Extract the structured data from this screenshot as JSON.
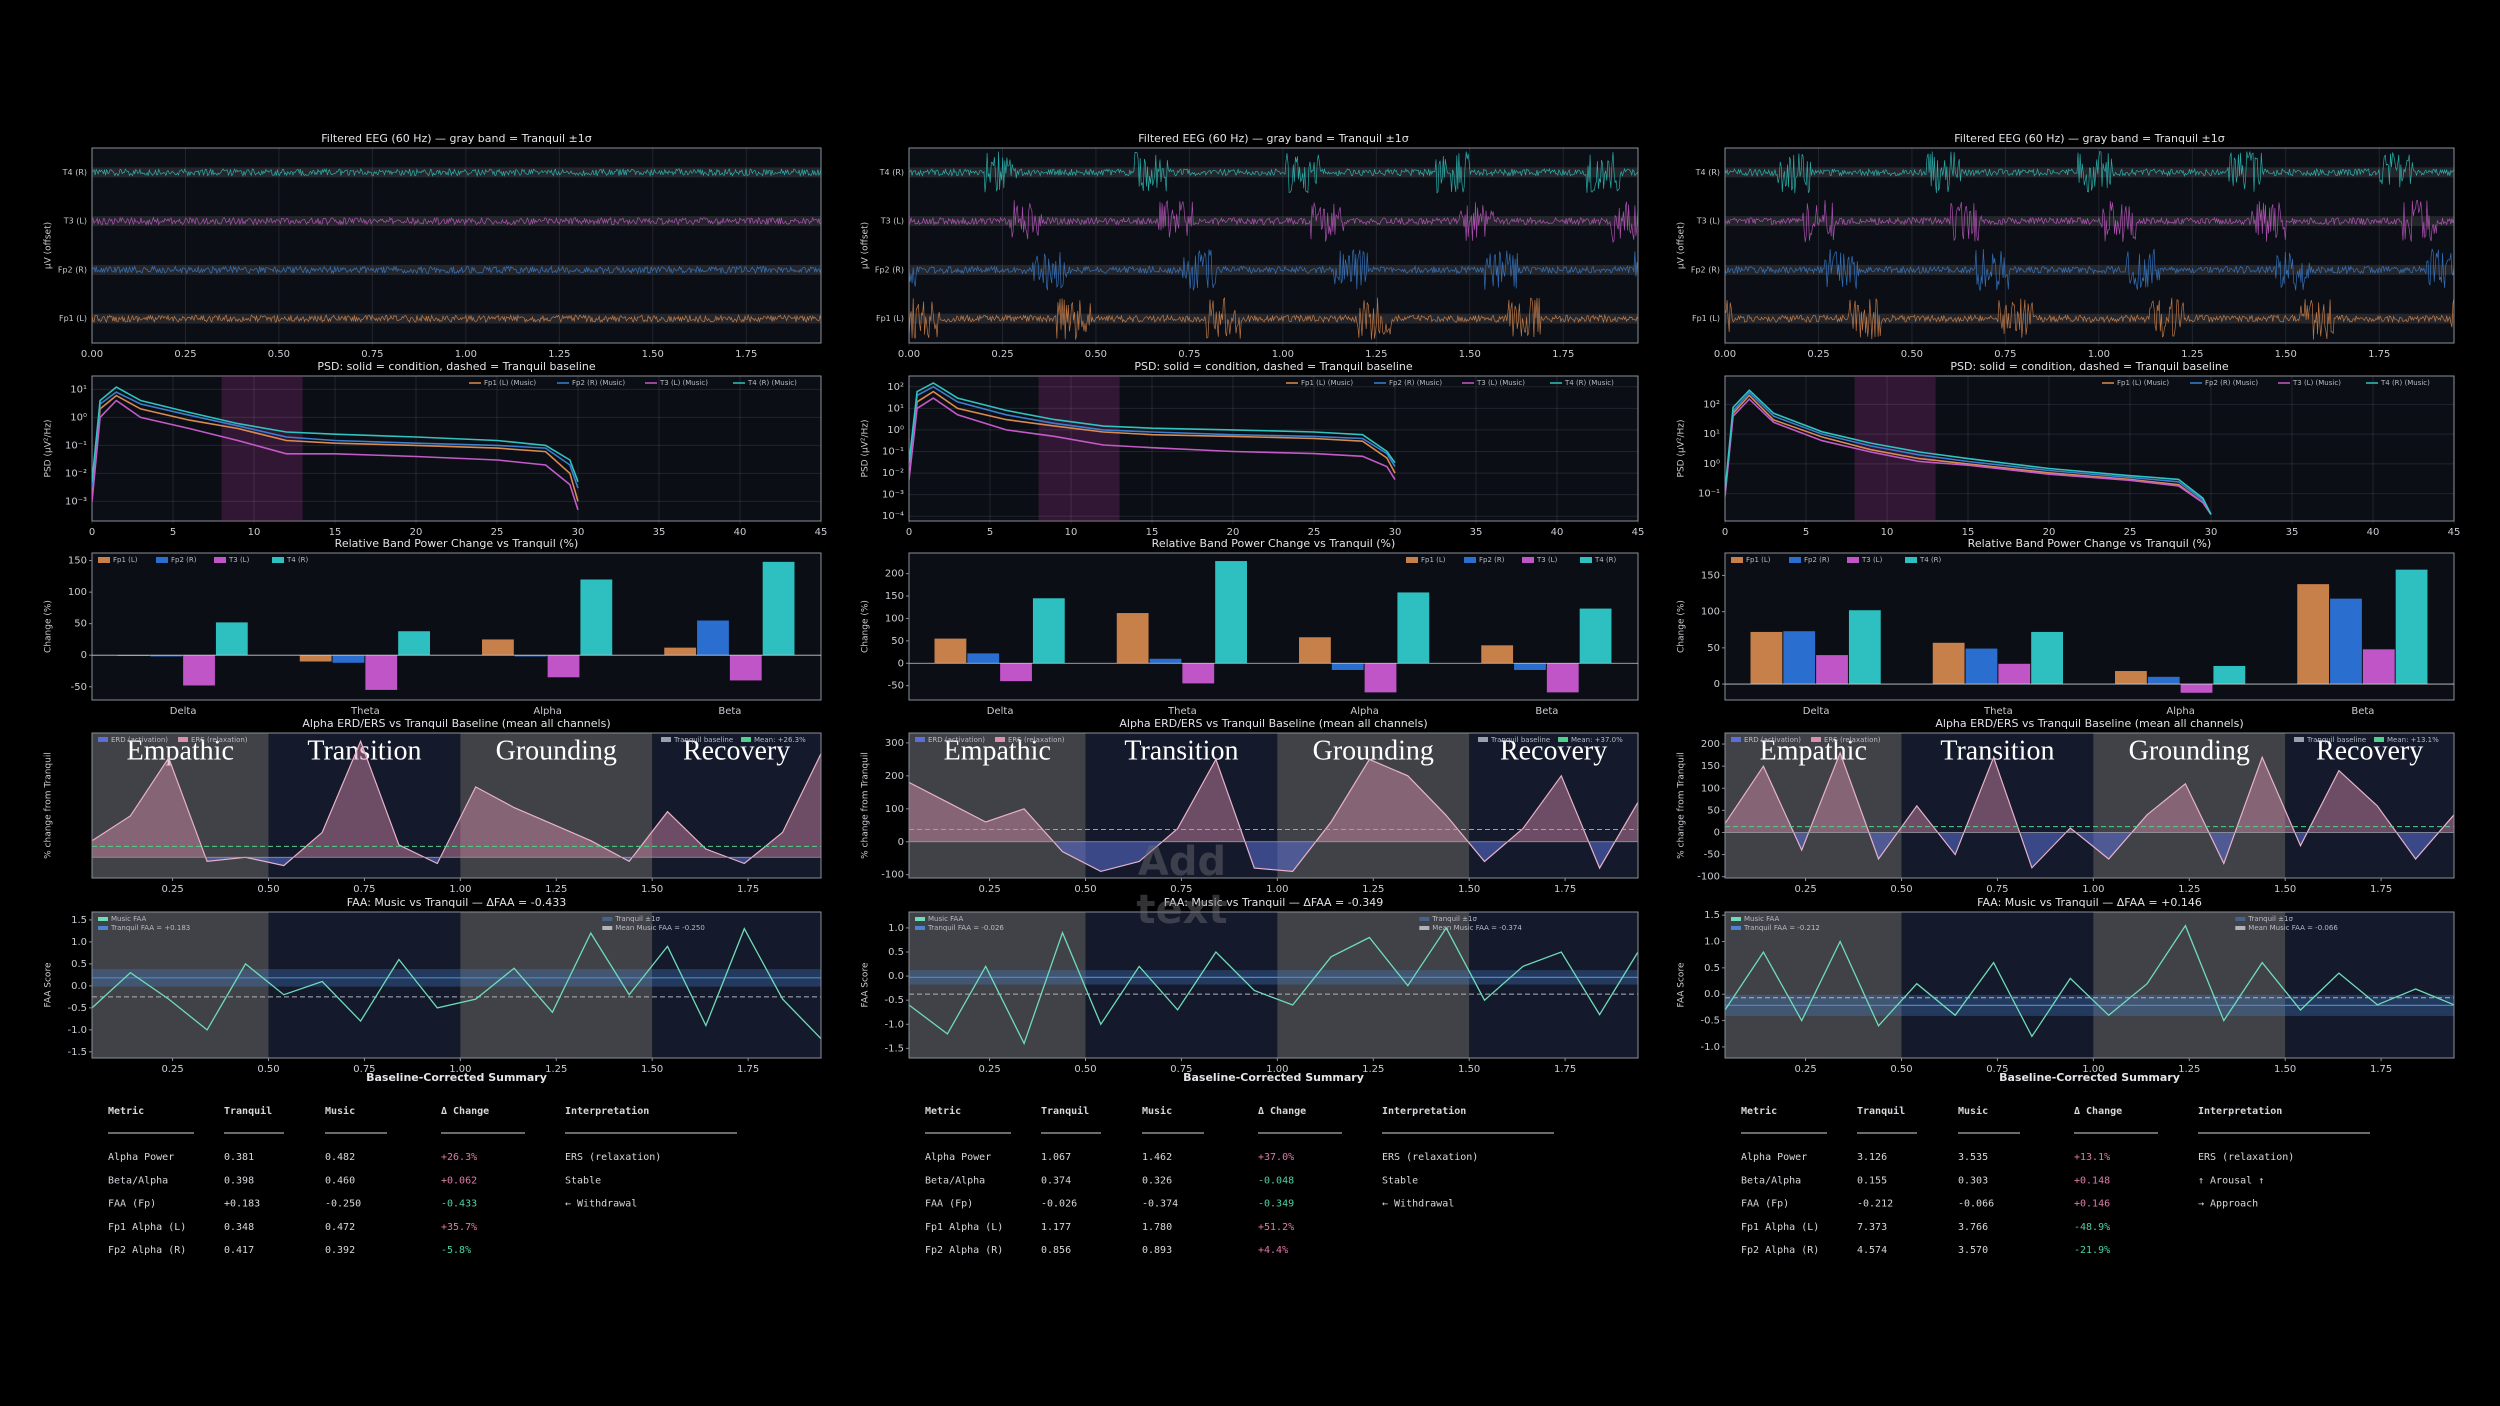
{
  "common": {
    "eeg": {
      "title": "Filtered EEG (60 Hz) — gray band = Tranquil ±1σ",
      "ylabel": "µV (offset)",
      "channels": [
        "Fp1 (L)",
        "Fp2 (R)",
        "T3 (L)",
        "T4 (R)"
      ],
      "colors": [
        "#d98a50",
        "#3b7fd0",
        "#c45ac8",
        "#2fc4c0"
      ],
      "xlim": [
        0,
        1.95
      ],
      "xticks": [
        {
          "value": 0,
          "label": "0.00"
        },
        0.25,
        {
          "value": 0.5,
          "label": "0.50"
        },
        0.75,
        {
          "value": 1,
          "label": "1.00"
        },
        1.25,
        {
          "value": 1.5,
          "label": "1.50"
        },
        1.75
      ]
    },
    "psd": {
      "title": "PSD: solid = condition, dashed = Tranquil baseline",
      "ylabel": "PSD (µV²/Hz)",
      "log_y": true,
      "x": [
        0,
        0.5,
        1.5,
        3,
        6,
        9,
        12,
        15,
        20,
        25,
        28,
        29.5,
        30
      ],
      "xlim": [
        0,
        45
      ],
      "xticks": [
        0,
        5,
        10,
        15,
        20,
        25,
        30,
        35,
        40,
        45
      ],
      "alpha_band": [
        8,
        13
      ]
    },
    "bands": {
      "title": "Relative Band Power Change vs Tranquil (%)",
      "ylabel": "Change (%)",
      "categories": [
        "Delta",
        "Theta",
        "Alpha",
        "Beta"
      ]
    },
    "erd": {
      "title": "Alpha ERD/ERS vs Tranquil Baseline (mean all channels)",
      "ylabel": "% change from Tranquil",
      "legend": [
        "ERD (activation)",
        "ERS (relaxation)",
        "Tranquil baseline"
      ],
      "ers_color": "#d98fae",
      "erd_color": "#5b6fd6",
      "mean_color": "#4fd18b"
    },
    "faa": {
      "ylabel": "FAA Score",
      "legend": [
        "Music FAA",
        "Tranquil ±1σ"
      ],
      "color": "#6fdcb8",
      "tranquil_color": "#4a86d0"
    },
    "time": {
      "x": [
        0.04,
        0.14,
        0.24,
        0.34,
        0.44,
        0.54,
        0.64,
        0.74,
        0.84,
        0.94,
        1.04,
        1.14,
        1.24,
        1.34,
        1.44,
        1.54,
        1.64,
        1.74,
        1.84,
        1.94
      ],
      "xlim": [
        0.04,
        1.94
      ],
      "xticks": [
        0.25,
        {
          "value": 0.5,
          "label": "0.50"
        },
        0.75,
        {
          "value": 1,
          "label": "1.00"
        },
        1.25,
        {
          "value": 1.5,
          "label": "1.50"
        },
        1.75
      ]
    },
    "phases": {
      "names": [
        "Empathic",
        "Transition",
        "Grounding",
        "Recovery"
      ],
      "bounds": [
        0,
        0.5,
        1,
        1.5,
        2
      ]
    },
    "summary": {
      "title": "Baseline-Corrected Summary",
      "header": [
        "Metric",
        "Tranquil",
        "Music",
        "Δ Change",
        "Interpretation"
      ]
    }
  },
  "panels": [
    {
      "psd": {
        "ylim": [
          0.0002,
          30
        ],
        "yticks": [
          {
            "value": 10,
            "label": "10¹"
          },
          {
            "value": 1,
            "label": "10⁰"
          },
          {
            "value": 0.1,
            "label": "10⁻¹"
          },
          {
            "value": 0.01,
            "label": "10⁻²"
          },
          {
            "value": 0.001,
            "label": "10⁻³"
          }
        ],
        "series": [
          {
            "name": "Fp1 (L) (Music)",
            "color": "#d98a50",
            "values": [
              0.002,
              2,
              6,
              2,
              0.8,
              0.4,
              0.15,
              0.12,
              0.1,
              0.08,
              0.06,
              0.01,
              0.001
            ]
          },
          {
            "name": "Fp2 (R) (Music)",
            "color": "#3b7fd0",
            "values": [
              0.003,
              3,
              8,
              3,
              1.2,
              0.5,
              0.2,
              0.15,
              0.12,
              0.1,
              0.08,
              0.02,
              0.003
            ]
          },
          {
            "name": "T3 (L) (Music)",
            "color": "#c45ac8",
            "values": [
              0.001,
              1,
              4,
              1,
              0.4,
              0.15,
              0.05,
              0.05,
              0.04,
              0.03,
              0.02,
              0.004,
              0.0005
            ]
          },
          {
            "name": "T4 (R) (Music)",
            "color": "#2fc4c0",
            "values": [
              0.005,
              4,
              12,
              4,
              1.5,
              0.6,
              0.3,
              0.25,
              0.2,
              0.15,
              0.1,
              0.03,
              0.005
            ]
          }
        ]
      },
      "bands": {
        "ylim": [
          -71,
          162
        ],
        "yticks": [
          -50,
          0,
          50,
          100,
          150
        ],
        "legend": "upper left",
        "series": [
          {
            "name": "Fp1 (L)",
            "color": "#c8804a",
            "values": [
              -1,
              -10,
              25,
              12
            ]
          },
          {
            "name": "Fp2 (R)",
            "color": "#2a6ed0",
            "values": [
              -2,
              -12,
              -2,
              55
            ]
          },
          {
            "name": "T3 (L)",
            "color": "#c055c8",
            "values": [
              -48,
              -55,
              -35,
              -40
            ]
          },
          {
            "name": "T4 (R)",
            "color": "#2ec0c0",
            "values": [
              52,
              38,
              120,
              148
            ]
          }
        ]
      },
      "erd": {
        "ylim": [
          -50,
          300
        ],
        "yticks": [],
        "mean": 26.3,
        "mean_label": "Mean: +26.3%",
        "values": [
          40,
          100,
          240,
          -10,
          0,
          -20,
          60,
          280,
          30,
          -15,
          170,
          120,
          80,
          40,
          -10,
          110,
          20,
          -15,
          60,
          250
        ]
      },
      "faa": {
        "title": "FAA: Music vs Tranquil — ΔFAA = -0.433",
        "ylim": [
          -1.64,
          1.68
        ],
        "yticks": [
          1.5,
          {
            "value": 1,
            "label": "1.0"
          },
          0.5,
          {
            "value": 0,
            "label": "0.0"
          },
          -0.5,
          {
            "value": -1,
            "label": "-1.0"
          },
          -1.5
        ],
        "tranquil": 0.183,
        "tranquil_sd": 0.2,
        "mean": -0.25,
        "legend": [
          "Tranquil FAA = +0.183",
          "Mean Music FAA = -0.250"
        ],
        "values": [
          -0.5,
          0.3,
          -0.3,
          -1.0,
          0.5,
          -0.2,
          0.1,
          -0.8,
          0.6,
          -0.5,
          -0.3,
          0.4,
          -0.6,
          1.2,
          -0.2,
          0.9,
          -0.9,
          1.3,
          -0.3,
          -1.2
        ]
      },
      "summary": {
        "rows": [
          [
            "Alpha Power",
            "0.381",
            "0.482",
            "+26.3%",
            "ERS (relaxation)"
          ],
          [
            "Beta/Alpha",
            "0.398",
            "0.460",
            "+0.062",
            "Stable"
          ],
          [
            "FAA (Fp)",
            "+0.183",
            "-0.250",
            "-0.433",
            "← Withdrawal"
          ],
          [
            "Fp1 Alpha (L)",
            "0.348",
            "0.472",
            "+35.7%"
          ],
          [
            "Fp2 Alpha (R)",
            "0.417",
            "0.392",
            "-5.8%"
          ]
        ]
      }
    },
    {
      "psd": {
        "ylim": [
          6e-05,
          316
        ],
        "yticks": [
          {
            "value": 100,
            "label": "10²"
          },
          {
            "value": 10,
            "label": "10¹"
          },
          {
            "value": 1,
            "label": "10⁰"
          },
          {
            "value": 0.1,
            "label": "10⁻¹"
          },
          {
            "value": 0.01,
            "label": "10⁻²"
          },
          {
            "value": 0.001,
            "label": "10⁻³"
          },
          {
            "value": 0.0001,
            "label": "10⁻⁴"
          }
        ],
        "series": [
          {
            "name": "Fp1 (L) (Music)",
            "color": "#d98a50",
            "values": [
              0.01,
              20,
              60,
              10,
              3,
              1.5,
              0.8,
              0.6,
              0.5,
              0.4,
              0.3,
              0.05,
              0.01
            ]
          },
          {
            "name": "Fp2 (R) (Music)",
            "color": "#3b7fd0",
            "values": [
              0.02,
              40,
              100,
              20,
              5,
              2,
              1,
              0.8,
              0.6,
              0.5,
              0.4,
              0.08,
              0.02
            ]
          },
          {
            "name": "T3 (L) (Music)",
            "color": "#c45ac8",
            "values": [
              0.005,
              10,
              30,
              5,
              1,
              0.5,
              0.2,
              0.15,
              0.1,
              0.08,
              0.06,
              0.02,
              0.005
            ]
          },
          {
            "name": "T4 (R) (Music)",
            "color": "#2fc4c0",
            "values": [
              0.03,
              60,
              150,
              30,
              8,
              3,
              1.5,
              1.2,
              1,
              0.8,
              0.6,
              0.1,
              0.03
            ]
          }
        ]
      },
      "bands": {
        "ylim": [
          -82,
          246
        ],
        "yticks": [
          -50,
          0,
          50,
          100,
          150,
          200
        ],
        "legend": "upper right",
        "series": [
          {
            "name": "Fp1 (L)",
            "color": "#c8804a",
            "values": [
              55,
              112,
              58,
              40
            ]
          },
          {
            "name": "Fp2 (R)",
            "color": "#2a6ed0",
            "values": [
              22,
              10,
              -15,
              -15
            ]
          },
          {
            "name": "T3 (L)",
            "color": "#c055c8",
            "values": [
              -40,
              -45,
              -65,
              -65
            ]
          },
          {
            "name": "T4 (R)",
            "color": "#2ec0c0",
            "values": [
              145,
              228,
              158,
              122
            ]
          }
        ]
      },
      "erd": {
        "ylim": [
          -110,
          330
        ],
        "yticks": [
          -100,
          0,
          100,
          200,
          300
        ],
        "mean": 37.0,
        "mean_label": "Mean: +37.0%",
        "values": [
          180,
          120,
          60,
          100,
          -30,
          -90,
          -60,
          40,
          250,
          -80,
          -90,
          60,
          250,
          200,
          80,
          -60,
          40,
          200,
          -80,
          120
        ]
      },
      "faa": {
        "title": "FAA: Music vs Tranquil — ΔFAA = -0.349",
        "ylim": [
          -1.7,
          1.33
        ],
        "yticks": [
          {
            "value": 1,
            "label": "1.0"
          },
          0.5,
          {
            "value": 0,
            "label": "0.0"
          },
          -0.5,
          {
            "value": -1,
            "label": "-1.0"
          },
          -1.5
        ],
        "tranquil": -0.026,
        "tranquil_sd": 0.15,
        "mean": -0.374,
        "legend": [
          "Tranquil FAA = -0.026",
          "Mean Music FAA = -0.374"
        ],
        "values": [
          -0.6,
          -1.2,
          0.2,
          -1.4,
          0.9,
          -1.0,
          0.2,
          -0.7,
          0.5,
          -0.3,
          -0.6,
          0.4,
          0.8,
          -0.2,
          1.0,
          -0.5,
          0.2,
          0.5,
          -0.8,
          0.5
        ]
      },
      "summary": {
        "rows": [
          [
            "Alpha Power",
            "1.067",
            "1.462",
            "+37.0%",
            "ERS (relaxation)"
          ],
          [
            "Beta/Alpha",
            "0.374",
            "0.326",
            "-0.048",
            "Stable"
          ],
          [
            "FAA (Fp)",
            "-0.026",
            "-0.374",
            "-0.349",
            "← Withdrawal"
          ],
          [
            "Fp1 Alpha (L)",
            "1.177",
            "1.780",
            "+51.2%"
          ],
          [
            "Fp2 Alpha (R)",
            "0.856",
            "0.893",
            "+4.4%"
          ]
        ]
      },
      "placeholder": "Add text"
    },
    {
      "psd": {
        "ylim": [
          0.012,
          900
        ],
        "yticks": [
          {
            "value": 100,
            "label": "10²"
          },
          {
            "value": 10,
            "label": "10¹"
          },
          {
            "value": 1,
            "label": "10⁰"
          },
          {
            "value": 0.1,
            "label": "10⁻¹"
          }
        ],
        "series": [
          {
            "name": "Fp1 (L) (Music)",
            "color": "#d98a50",
            "values": [
              0.1,
              50,
              200,
              30,
              8,
              3,
              1.5,
              1,
              0.5,
              0.3,
              0.2,
              0.05,
              0.02
            ]
          },
          {
            "name": "Fp2 (R) (Music)",
            "color": "#3b7fd0",
            "values": [
              0.1,
              60,
              250,
              40,
              10,
              4,
              2,
              1.2,
              0.6,
              0.35,
              0.25,
              0.06,
              0.02
            ]
          },
          {
            "name": "T3 (L) (Music)",
            "color": "#c45ac8",
            "values": [
              0.08,
              40,
              150,
              25,
              6,
              2.5,
              1.2,
              0.9,
              0.45,
              0.28,
              0.18,
              0.05,
              0.02
            ]
          },
          {
            "name": "T4 (R) (Music)",
            "color": "#2fc4c0",
            "values": [
              0.12,
              80,
              300,
              50,
              12,
              5,
              2.5,
              1.5,
              0.7,
              0.4,
              0.3,
              0.07,
              0.02
            ]
          }
        ]
      },
      "bands": {
        "ylim": [
          -22,
          181
        ],
        "yticks": [
          0,
          50,
          100,
          150
        ],
        "legend": "upper left",
        "series": [
          {
            "name": "Fp1 (L)",
            "color": "#c8804a",
            "values": [
              72,
              57,
              18,
              138
            ]
          },
          {
            "name": "Fp2 (R)",
            "color": "#2a6ed0",
            "values": [
              73,
              49,
              10,
              118
            ]
          },
          {
            "name": "T3 (L)",
            "color": "#c055c8",
            "values": [
              40,
              28,
              -12,
              48
            ]
          },
          {
            "name": "T4 (R)",
            "color": "#2ec0c0",
            "values": [
              102,
              72,
              25,
              158
            ]
          }
        ]
      },
      "erd": {
        "ylim": [
          -103,
          225
        ],
        "yticks": [
          -100,
          -50,
          0,
          50,
          100,
          150,
          200
        ],
        "mean": 13.1,
        "mean_label": "Mean: +13.1%",
        "values": [
          20,
          150,
          -40,
          180,
          -60,
          60,
          -50,
          170,
          -80,
          10,
          -60,
          40,
          110,
          -70,
          170,
          -30,
          140,
          60,
          -60,
          40
        ]
      },
      "faa": {
        "title": "FAA: Music vs Tranquil — ΔFAA = +0.146",
        "ylim": [
          -1.21,
          1.56
        ],
        "yticks": [
          1.5,
          {
            "value": 1,
            "label": "1.0"
          },
          0.5,
          {
            "value": 0,
            "label": "0.0"
          },
          -0.5,
          {
            "value": -1,
            "label": "-1.0"
          }
        ],
        "tranquil": -0.212,
        "tranquil_sd": 0.2,
        "mean": -0.066,
        "legend": [
          "Tranquil FAA = -0.212",
          "Mean Music FAA = -0.066"
        ],
        "values": [
          -0.3,
          0.8,
          -0.5,
          1.0,
          -0.6,
          0.2,
          -0.4,
          0.6,
          -0.8,
          0.3,
          -0.4,
          0.2,
          1.3,
          -0.5,
          0.6,
          -0.3,
          0.4,
          -0.2,
          0.1,
          -0.2
        ]
      },
      "summary": {
        "rows": [
          [
            "Alpha Power",
            "3.126",
            "3.535",
            "+13.1%",
            "ERS (relaxation)"
          ],
          [
            "Beta/Alpha",
            "0.155",
            "0.303",
            "+0.148",
            "↑ Arousal ↑"
          ],
          [
            "FAA (Fp)",
            "-0.212",
            "-0.066",
            "+0.146",
            "→ Approach"
          ],
          [
            "Fp1 Alpha (L)",
            "7.373",
            "3.766",
            "-48.9%"
          ],
          [
            "Fp2 Alpha (R)",
            "4.574",
            "3.570",
            "-21.9%"
          ]
        ]
      }
    }
  ]
}
